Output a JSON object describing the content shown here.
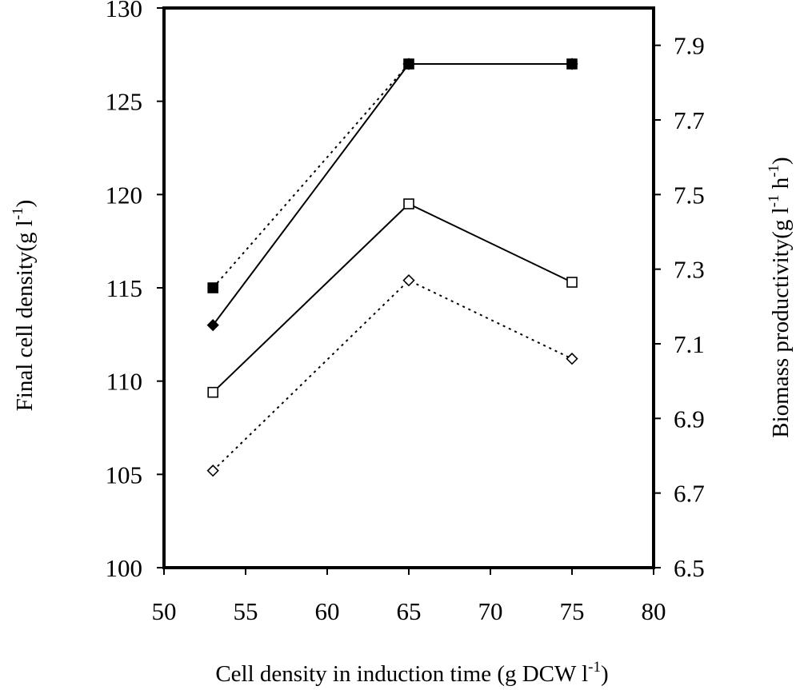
{
  "chart_data": {
    "type": "line",
    "xlabel": {
      "main": "Cell density in induction time (g DCW l",
      "sup": "-1",
      "end": ")"
    },
    "ylabel_left": {
      "main": "Final cell density(g l",
      "sup": "-1",
      "end": ")"
    },
    "ylabel_right": {
      "main": "Biomass productivity(g l",
      "sup1": "-1",
      "mid": " h",
      "sup2": "-1",
      "end": ")"
    },
    "xlim": [
      50,
      80
    ],
    "ylim_left": [
      100,
      130
    ],
    "ylim_right": [
      6.5,
      8.0
    ],
    "x_ticks": [
      "50",
      "55",
      "60",
      "65",
      "70",
      "75",
      "80"
    ],
    "y_left_ticks": [
      "100",
      "105",
      "110",
      "115",
      "120",
      "125",
      "130"
    ],
    "y_right_ticks": [
      "6.5",
      "6.7",
      "6.9",
      "7.1",
      "7.3",
      "7.5",
      "7.7",
      "7.9"
    ],
    "x_tick_values": [
      50,
      55,
      60,
      65,
      70,
      75,
      80
    ],
    "y_left_tick_values": [
      100,
      105,
      110,
      115,
      120,
      125,
      130
    ],
    "y_right_tick_values": [
      6.5,
      6.7,
      6.9,
      7.1,
      7.3,
      7.5,
      7.7,
      7.9
    ],
    "grid": false,
    "series": [
      {
        "axis": "left",
        "marker": "square-filled",
        "line": "dotted",
        "color": "#000000",
        "x": [
          53,
          65,
          75
        ],
        "y": [
          115.0,
          127.0,
          127.0
        ]
      },
      {
        "axis": "right",
        "marker": "diamond-filled",
        "line": "solid",
        "color": "#000000",
        "x": [
          53,
          65,
          75
        ],
        "y": [
          7.15,
          7.85,
          7.85
        ]
      },
      {
        "axis": "left",
        "marker": "square-open",
        "line": "solid",
        "color": "#000000",
        "x": [
          53,
          65,
          75
        ],
        "y": [
          109.4,
          119.5,
          115.3
        ]
      },
      {
        "axis": "right",
        "marker": "diamond-open",
        "line": "dotted",
        "color": "#000000",
        "x": [
          53,
          65,
          75
        ],
        "y": [
          6.76,
          7.27,
          7.06
        ]
      }
    ]
  }
}
